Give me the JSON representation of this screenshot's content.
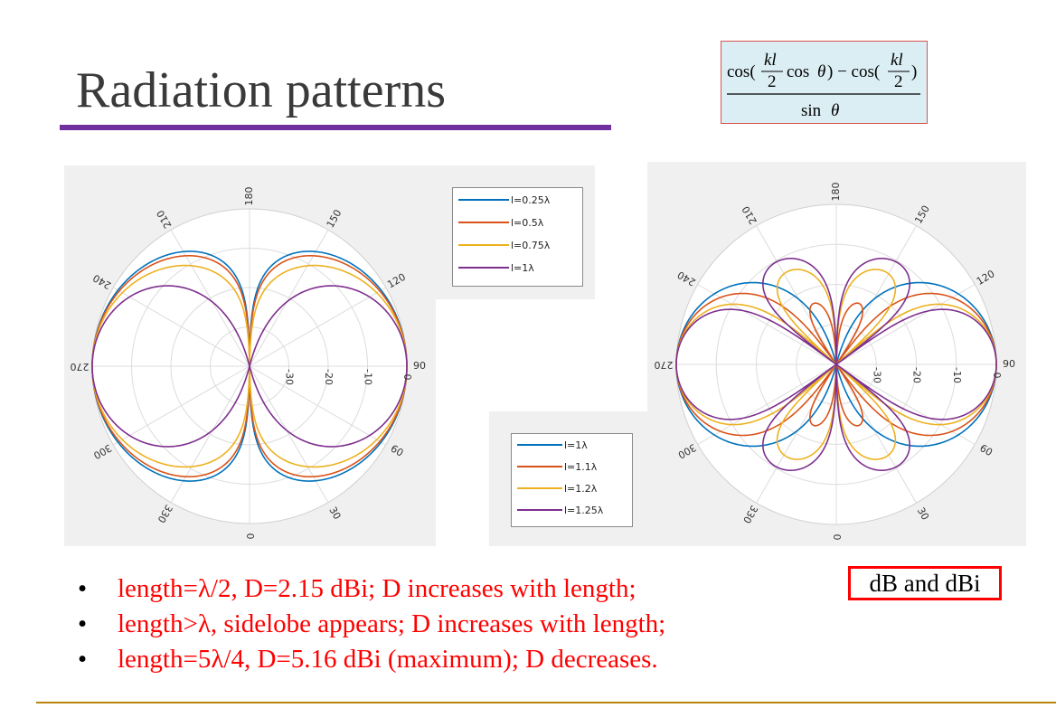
{
  "title": "Radiation patterns",
  "formula": {
    "numerator_parts": [
      "cos(",
      "kl",
      "2",
      "cos",
      "θ",
      ") − cos(",
      "kl",
      "2",
      ")"
    ],
    "denominator_parts": [
      "sin",
      "θ"
    ]
  },
  "chart_data": [
    {
      "type": "polar",
      "angle_ticks": [
        "0",
        "30",
        "60",
        "90",
        "120",
        "150",
        "180",
        "210",
        "240",
        "270",
        "300",
        "330"
      ],
      "radial_ticks": [
        "-30",
        "-20",
        "-10",
        "0"
      ],
      "radial_range_db": [
        -40,
        0
      ],
      "grid": true,
      "legend_position": "top-right",
      "series": [
        {
          "name": "l=0.25λ",
          "kl": 1.5708,
          "color": "#0072bd"
        },
        {
          "name": "l=0.5λ",
          "kl": 3.1416,
          "color": "#d95319"
        },
        {
          "name": "l=0.75λ",
          "kl": 4.7124,
          "color": "#edb120"
        },
        {
          "name": "l=1λ",
          "kl": 6.2832,
          "color": "#7e2f8e"
        }
      ]
    },
    {
      "type": "polar",
      "angle_ticks": [
        "0",
        "30",
        "60",
        "90",
        "120",
        "150",
        "180",
        "210",
        "240",
        "270",
        "300",
        "330"
      ],
      "radial_ticks": [
        "-30",
        "-20",
        "-10",
        "0"
      ],
      "radial_range_db": [
        -40,
        0
      ],
      "grid": true,
      "legend_position": "bottom-left",
      "series": [
        {
          "name": "l=1λ",
          "kl": 6.2832,
          "color": "#0072bd"
        },
        {
          "name": "l=1.1λ",
          "kl": 6.9115,
          "color": "#d95319"
        },
        {
          "name": "l=1.2λ",
          "kl": 7.5398,
          "color": "#edb120"
        },
        {
          "name": "l=1.25λ",
          "kl": 7.854,
          "color": "#7e2f8e"
        }
      ]
    }
  ],
  "bullets": [
    "length=λ/2, D=2.15 dBi; D increases with length;",
    "length>λ, sidelobe appears; D increases with length;",
    "length=5λ/4, D=5.16 dBi (maximum); D decreases."
  ],
  "bullet_symbol": "•",
  "db_box": "dB and dBi"
}
